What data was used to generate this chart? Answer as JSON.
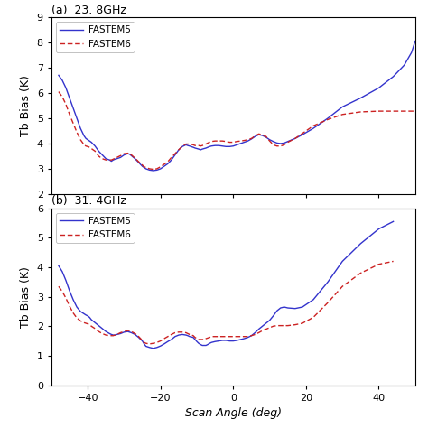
{
  "title_a": "(a)  23. 8GHz",
  "title_b": "(b)  31. 4GHz",
  "xlabel": "Scan Angle (deg)",
  "ylabel_a": "Tb Bias (K)",
  "ylabel_b": "Tb Bias (K)",
  "legend_labels": [
    "FASTEM5",
    "FASTEM6"
  ],
  "panel_a": {
    "ylim": [
      2,
      9
    ],
    "yticks": [
      2,
      3,
      4,
      5,
      6,
      7,
      8,
      9
    ],
    "fastem5": [
      6.7,
      6.5,
      6.2,
      5.8,
      5.4,
      5.0,
      4.6,
      4.3,
      4.2,
      4.15,
      4.1,
      4.05,
      3.9,
      3.7,
      3.55,
      3.4,
      3.35,
      3.3,
      3.35,
      3.38,
      3.4,
      3.45,
      3.55,
      3.6,
      3.58,
      3.52,
      3.4,
      3.25,
      3.1,
      3.05,
      3.0,
      2.95,
      2.93,
      2.95,
      3.0,
      3.1,
      3.2,
      3.35,
      3.55,
      3.75,
      3.88,
      3.95,
      3.92,
      3.9,
      3.85,
      3.82,
      3.8,
      3.78,
      3.75,
      3.78,
      3.8,
      3.82,
      3.85,
      3.88,
      3.9,
      3.92,
      3.92,
      3.9,
      3.88,
      3.88,
      3.9,
      3.95,
      4.0,
      4.05,
      4.1,
      4.18,
      4.28,
      4.35,
      4.32,
      4.25,
      4.15,
      4.08,
      4.02,
      4.0,
      4.02,
      4.08,
      4.2,
      4.35,
      4.6,
      5.0,
      5.45,
      5.8,
      6.2,
      6.65,
      7.1,
      7.6,
      8.05
    ],
    "fastem6": [
      6.05,
      5.85,
      5.55,
      5.15,
      4.8,
      4.45,
      4.15,
      3.95,
      3.9,
      3.88,
      3.85,
      3.8,
      3.7,
      3.5,
      3.4,
      3.35,
      3.35,
      3.35,
      3.38,
      3.42,
      3.45,
      3.52,
      3.6,
      3.62,
      3.6,
      3.55,
      3.42,
      3.28,
      3.15,
      3.08,
      3.05,
      3.0,
      2.98,
      3.0,
      3.08,
      3.18,
      3.28,
      3.45,
      3.6,
      3.75,
      3.9,
      3.98,
      3.98,
      3.98,
      3.95,
      3.92,
      3.92,
      3.92,
      3.9,
      3.92,
      3.95,
      3.98,
      4.02,
      4.05,
      4.08,
      4.1,
      4.1,
      4.1,
      4.08,
      4.05,
      4.05,
      4.08,
      4.1,
      4.12,
      4.15,
      4.2,
      4.3,
      4.38,
      4.35,
      4.28,
      4.1,
      3.95,
      3.9,
      3.9,
      3.95,
      4.05,
      4.2,
      4.4,
      4.7,
      4.95,
      5.15,
      5.25,
      5.28,
      5.28,
      5.28,
      5.28,
      5.28
    ]
  },
  "panel_b": {
    "ylim": [
      0,
      6
    ],
    "yticks": [
      0,
      1,
      2,
      3,
      4,
      5,
      6
    ],
    "fastem5": [
      4.05,
      3.85,
      3.55,
      3.2,
      2.9,
      2.65,
      2.5,
      2.42,
      2.38,
      2.35,
      2.3,
      2.22,
      2.12,
      2.02,
      1.92,
      1.82,
      1.75,
      1.72,
      1.7,
      1.7,
      1.72,
      1.75,
      1.8,
      1.82,
      1.8,
      1.78,
      1.72,
      1.62,
      1.5,
      1.4,
      1.32,
      1.28,
      1.25,
      1.28,
      1.33,
      1.4,
      1.48,
      1.55,
      1.65,
      1.7,
      1.72,
      1.7,
      1.68,
      1.65,
      1.62,
      1.55,
      1.48,
      1.42,
      1.38,
      1.35,
      1.35,
      1.35,
      1.38,
      1.42,
      1.45,
      1.48,
      1.5,
      1.52,
      1.52,
      1.5,
      1.5,
      1.52,
      1.55,
      1.58,
      1.62,
      1.68,
      1.78,
      1.9,
      2.0,
      2.1,
      2.2,
      2.35,
      2.52,
      2.62,
      2.65,
      2.62,
      2.6,
      2.65,
      2.9,
      3.5,
      4.2,
      4.8,
      5.3,
      5.55
    ],
    "fastem6": [
      3.35,
      3.18,
      2.95,
      2.68,
      2.45,
      2.28,
      2.18,
      2.12,
      2.1,
      2.08,
      2.05,
      2.0,
      1.92,
      1.82,
      1.75,
      1.7,
      1.68,
      1.68,
      1.68,
      1.7,
      1.72,
      1.78,
      1.82,
      1.85,
      1.85,
      1.82,
      1.75,
      1.65,
      1.52,
      1.45,
      1.42,
      1.4,
      1.42,
      1.45,
      1.5,
      1.58,
      1.65,
      1.72,
      1.78,
      1.8,
      1.8,
      1.78,
      1.75,
      1.72,
      1.68,
      1.62,
      1.58,
      1.55,
      1.55,
      1.55,
      1.55,
      1.58,
      1.6,
      1.62,
      1.65,
      1.65,
      1.65,
      1.65,
      1.65,
      1.65,
      1.65,
      1.65,
      1.65,
      1.65,
      1.65,
      1.68,
      1.72,
      1.78,
      1.85,
      1.9,
      1.95,
      2.0,
      2.02,
      2.02,
      2.02,
      2.02,
      2.05,
      2.1,
      2.3,
      2.8,
      3.35,
      3.8,
      4.1,
      4.2
    ]
  },
  "scan_angles_a": [
    -48.0,
    -47.0,
    -46.0,
    -45.0,
    -44.0,
    -43.0,
    -42.0,
    -41.0,
    -40.5,
    -40.0,
    -39.5,
    -39.0,
    -38.0,
    -37.0,
    -36.0,
    -35.0,
    -34.0,
    -33.5,
    -33.0,
    -32.5,
    -32.0,
    -31.0,
    -30.0,
    -29.0,
    -28.5,
    -28.0,
    -27.0,
    -26.0,
    -25.0,
    -24.5,
    -24.0,
    -23.0,
    -22.0,
    -21.0,
    -20.0,
    -19.0,
    -18.0,
    -17.0,
    -16.0,
    -15.0,
    -14.0,
    -13.0,
    -12.5,
    -12.0,
    -11.0,
    -10.5,
    -10.0,
    -9.5,
    -9.0,
    -8.5,
    -8.0,
    -7.5,
    -7.0,
    -6.5,
    -6.0,
    -5.0,
    -4.0,
    -3.0,
    -2.0,
    -1.0,
    0.0,
    1.0,
    2.0,
    3.0,
    4.0,
    5.0,
    6.0,
    7.0,
    8.0,
    9.0,
    10.0,
    11.0,
    12.0,
    13.0,
    14.0,
    15.0,
    17.0,
    19.0,
    22.0,
    26.0,
    30.0,
    35.0,
    40.0,
    44.0,
    47.0,
    49.0,
    50.0
  ],
  "scan_angles_b": [
    -48.0,
    -47.0,
    -46.0,
    -45.0,
    -44.0,
    -43.0,
    -42.0,
    -41.0,
    -40.5,
    -40.0,
    -39.5,
    -39.0,
    -38.0,
    -37.0,
    -36.0,
    -35.0,
    -34.0,
    -33.5,
    -33.0,
    -32.5,
    -32.0,
    -31.0,
    -30.0,
    -29.0,
    -28.5,
    -28.0,
    -27.0,
    -26.0,
    -25.0,
    -24.5,
    -24.0,
    -23.0,
    -22.0,
    -21.0,
    -20.0,
    -19.0,
    -18.0,
    -17.0,
    -16.0,
    -15.0,
    -14.0,
    -13.0,
    -12.5,
    -12.0,
    -11.0,
    -10.5,
    -10.0,
    -9.5,
    -9.0,
    -8.5,
    -8.0,
    -7.5,
    -7.0,
    -6.5,
    -6.0,
    -5.0,
    -4.0,
    -3.0,
    -2.0,
    -1.0,
    0.0,
    1.0,
    2.0,
    3.0,
    4.0,
    5.0,
    6.0,
    7.0,
    8.0,
    9.0,
    10.0,
    11.0,
    12.0,
    13.0,
    14.0,
    15.0,
    17.0,
    19.0,
    22.0,
    26.0,
    30.0,
    35.0,
    40.0,
    44.0
  ],
  "xticks": [
    -40,
    -20,
    0,
    20,
    40
  ],
  "xlim": [
    -50,
    50
  ],
  "color_fastem5": "#3333cc",
  "color_fastem6": "#cc2222",
  "bg_color": "#ffffff"
}
